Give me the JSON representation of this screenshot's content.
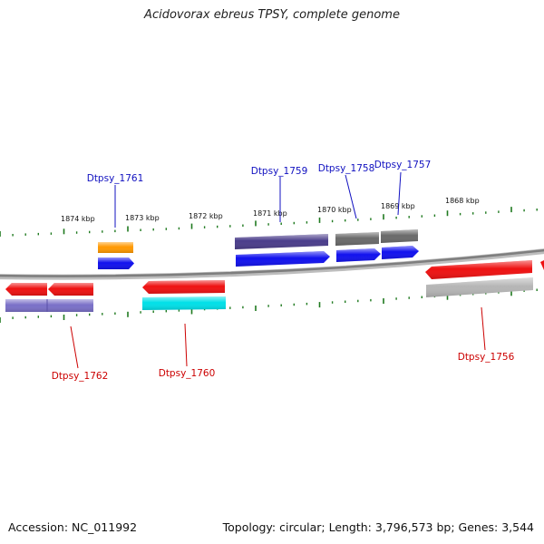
{
  "title": "Acidovorax ebreus TPSY, complete genome",
  "accession": "Accession: NC_011992",
  "summary": "Topology: circular; Length: 3,796,573 bp; Genes: 3,544",
  "colors": {
    "backbone": "#8c8c8c",
    "tick": "#1f7a1f",
    "forward_label": "#1010c0",
    "reverse_label": "#cc0000",
    "red": "#ee1111",
    "blue": "#1111ee",
    "orange": "#ff9900",
    "navy": "#4a3d8a",
    "gray": "#6a6a6a",
    "lightgray": "#b5b5b5",
    "purple": "#7a70c8",
    "cyan": "#00e0e8"
  },
  "kbp_labels": [
    "1874 kbp",
    "1873 kbp",
    "1872 kbp",
    "1871 kbp",
    "1870 kbp",
    "1869 kbp",
    "1868 kbp"
  ],
  "gene_labels": {
    "top": [
      "Dtpsy_1761",
      "Dtpsy_1759",
      "Dtpsy_1758",
      "Dtpsy_1757"
    ],
    "bottom": [
      "Dtpsy_1762",
      "Dtpsy_1760",
      "Dtpsy_1756"
    ]
  }
}
